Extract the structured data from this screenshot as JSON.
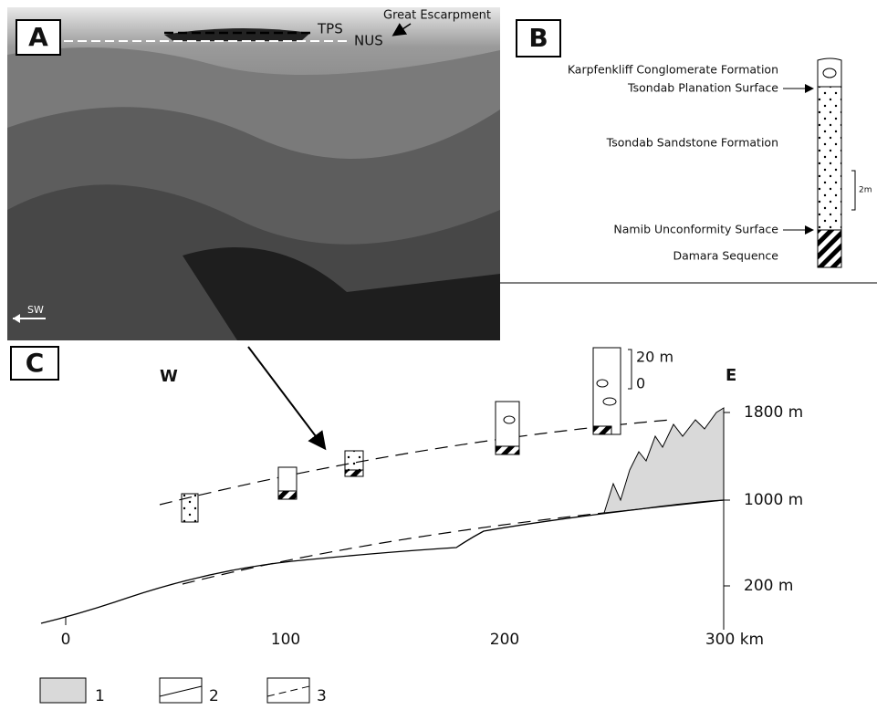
{
  "panel_a": {
    "label": "A",
    "tps": "TPS",
    "nus": "NUS",
    "escarpment": "Great Escarpment",
    "direction": "SW"
  },
  "panel_b": {
    "label": "B",
    "units": [
      "Karpfenkliff Conglomerate Formation",
      "Tsondab Planation Surface",
      "Tsondab Sandstone Formation",
      "Namib Unconformity Surface",
      "Damara Sequence"
    ],
    "scale": "2m"
  },
  "panel_c": {
    "label": "C",
    "west": "W",
    "east": "E",
    "x_labels": [
      "0",
      "100",
      "200",
      "300 km"
    ],
    "y_labels": [
      "1800 m",
      "1000 m",
      "200 m"
    ],
    "column_scale": [
      "20 m",
      "0"
    ],
    "legend": [
      "1",
      "2",
      "3"
    ]
  }
}
